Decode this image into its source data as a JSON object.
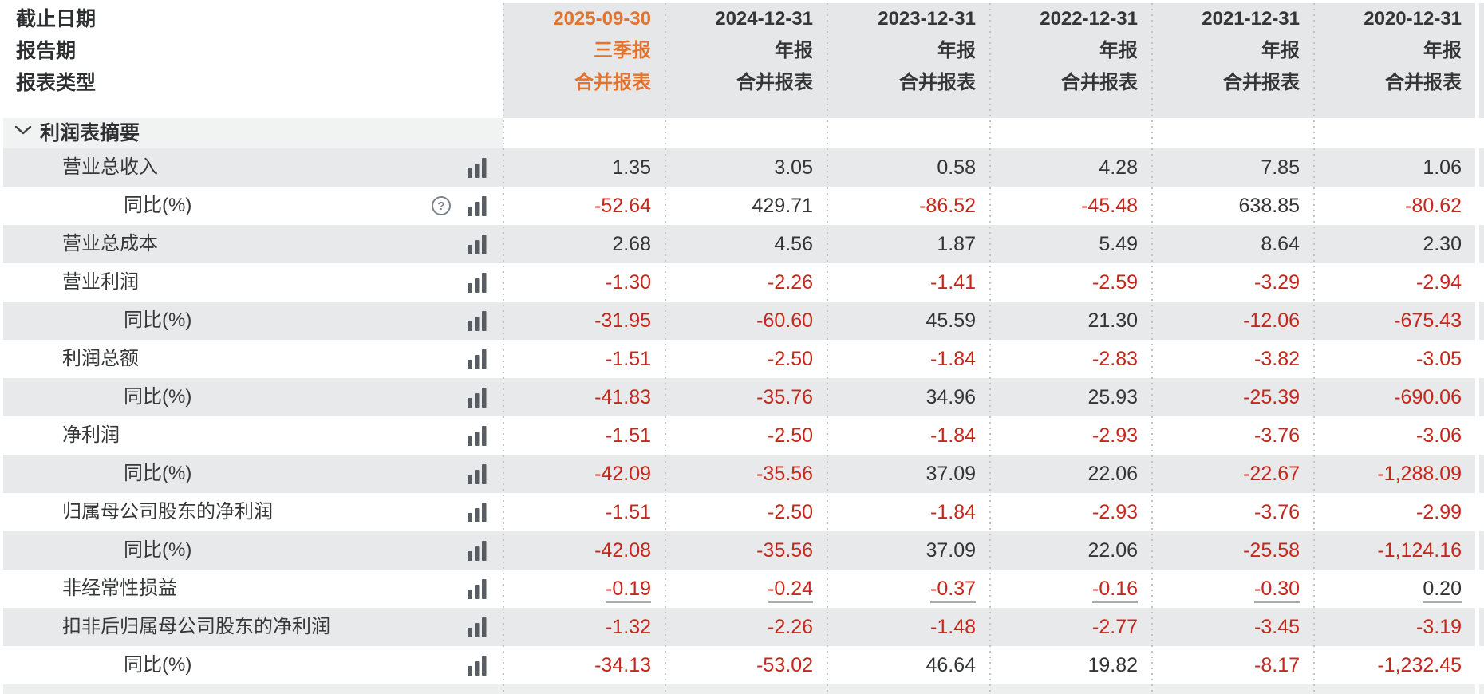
{
  "colors": {
    "accent_orange": "#e2732e",
    "negative_red": "#c5271c",
    "header_bg": "#e6e7e8",
    "row_stripe_bg": "#e8e9ea",
    "section_bg": "#f1f2f2",
    "text_dark": "#333435",
    "separator_dotted": "#c2c5c6",
    "icon_gray": "#585d63",
    "underline_gray": "#ababab"
  },
  "header": {
    "row_labels": [
      "截止日期",
      "报告期",
      "报表类型"
    ],
    "columns": [
      {
        "date": "2025-09-30",
        "period": "三季报",
        "report_type": "合并报表",
        "selected": true
      },
      {
        "date": "2024-12-31",
        "period": "年报",
        "report_type": "合并报表",
        "selected": false
      },
      {
        "date": "2023-12-31",
        "period": "年报",
        "report_type": "合并报表",
        "selected": false
      },
      {
        "date": "2022-12-31",
        "period": "年报",
        "report_type": "合并报表",
        "selected": false
      },
      {
        "date": "2021-12-31",
        "period": "年报",
        "report_type": "合并报表",
        "selected": false
      },
      {
        "date": "2020-12-31",
        "period": "年报",
        "report_type": "合并报表",
        "selected": false
      }
    ]
  },
  "section": {
    "title": "利润表摘要",
    "icon": "chevron-down-icon",
    "expanded": true
  },
  "rows": [
    {
      "label": "营业总收入",
      "indent": 1,
      "icons": [
        "bar-chart-icon"
      ],
      "underline": false,
      "values": [
        "1.35",
        "3.05",
        "0.58",
        "4.28",
        "7.85",
        "1.06"
      ]
    },
    {
      "label": "同比(%)",
      "indent": 2,
      "icons": [
        "help-icon",
        "bar-chart-icon"
      ],
      "underline": false,
      "values": [
        "-52.64",
        "429.71",
        "-86.52",
        "-45.48",
        "638.85",
        "-80.62"
      ]
    },
    {
      "label": "营业总成本",
      "indent": 1,
      "icons": [
        "bar-chart-icon"
      ],
      "underline": false,
      "values": [
        "2.68",
        "4.56",
        "1.87",
        "5.49",
        "8.64",
        "2.30"
      ]
    },
    {
      "label": "营业利润",
      "indent": 1,
      "icons": [
        "bar-chart-icon"
      ],
      "underline": false,
      "values": [
        "-1.30",
        "-2.26",
        "-1.41",
        "-2.59",
        "-3.29",
        "-2.94"
      ]
    },
    {
      "label": "同比(%)",
      "indent": 2,
      "icons": [
        "bar-chart-icon"
      ],
      "underline": false,
      "values": [
        "-31.95",
        "-60.60",
        "45.59",
        "21.30",
        "-12.06",
        "-675.43"
      ]
    },
    {
      "label": "利润总额",
      "indent": 1,
      "icons": [
        "bar-chart-icon"
      ],
      "underline": false,
      "values": [
        "-1.51",
        "-2.50",
        "-1.84",
        "-2.83",
        "-3.82",
        "-3.05"
      ]
    },
    {
      "label": "同比(%)",
      "indent": 2,
      "icons": [
        "bar-chart-icon"
      ],
      "underline": false,
      "values": [
        "-41.83",
        "-35.76",
        "34.96",
        "25.93",
        "-25.39",
        "-690.06"
      ]
    },
    {
      "label": "净利润",
      "indent": 1,
      "icons": [
        "bar-chart-icon"
      ],
      "underline": false,
      "values": [
        "-1.51",
        "-2.50",
        "-1.84",
        "-2.93",
        "-3.76",
        "-3.06"
      ]
    },
    {
      "label": "同比(%)",
      "indent": 2,
      "icons": [
        "bar-chart-icon"
      ],
      "underline": false,
      "values": [
        "-42.09",
        "-35.56",
        "37.09",
        "22.06",
        "-22.67",
        "-1,288.09"
      ]
    },
    {
      "label": "归属母公司股东的净利润",
      "indent": 1,
      "icons": [
        "bar-chart-icon"
      ],
      "underline": false,
      "values": [
        "-1.51",
        "-2.50",
        "-1.84",
        "-2.93",
        "-3.76",
        "-2.99"
      ]
    },
    {
      "label": "同比(%)",
      "indent": 2,
      "icons": [
        "bar-chart-icon"
      ],
      "underline": false,
      "values": [
        "-42.08",
        "-35.56",
        "37.09",
        "22.06",
        "-25.58",
        "-1,124.16"
      ]
    },
    {
      "label": "非经常性损益",
      "indent": 1,
      "icons": [
        "bar-chart-icon"
      ],
      "underline": true,
      "values": [
        "-0.19",
        "-0.24",
        "-0.37",
        "-0.16",
        "-0.30",
        "0.20"
      ]
    },
    {
      "label": "扣非后归属母公司股东的净利润",
      "indent": 1,
      "icons": [
        "bar-chart-icon"
      ],
      "underline": false,
      "values": [
        "-1.32",
        "-2.26",
        "-1.48",
        "-2.77",
        "-3.45",
        "-3.19"
      ]
    },
    {
      "label": "同比(%)",
      "indent": 2,
      "icons": [
        "bar-chart-icon"
      ],
      "underline": false,
      "values": [
        "-34.13",
        "-53.02",
        "46.64",
        "19.82",
        "-8.17",
        "-1,232.45"
      ]
    }
  ]
}
